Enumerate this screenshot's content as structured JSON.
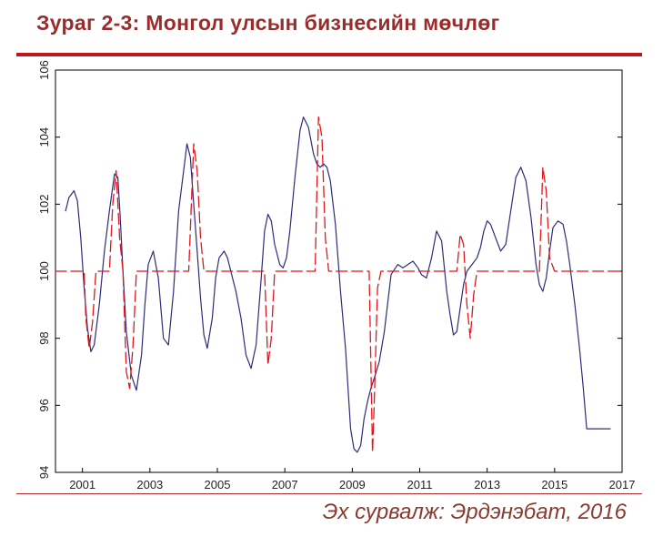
{
  "header": {
    "title": "Зураг 2-3:  Монгол улсын бизнесийн мөчлөг"
  },
  "footer": {
    "source": "Эх сурвалж: Эрдэнэбат, 2016"
  },
  "colors": {
    "title": "#9b2c2c",
    "rule": "#c0171c",
    "series_main": "#2b2d7c",
    "series_dashed": "#e0161b"
  },
  "chart_data": {
    "type": "line",
    "title": "",
    "xlabel": "",
    "ylabel": "",
    "xlim": [
      2000.2,
      2017
    ],
    "ylim": [
      94,
      106
    ],
    "x_ticks": [
      2001,
      2003,
      2005,
      2007,
      2009,
      2011,
      2013,
      2015,
      2017
    ],
    "y_ticks": [
      94,
      96,
      98,
      100,
      102,
      104,
      106
    ],
    "grid": false,
    "series": [
      {
        "style": "solid",
        "color": "#2b2d7c",
        "x": [
          2000.5,
          2000.6,
          2000.75,
          2000.85,
          2000.95,
          2001.05,
          2001.15,
          2001.25,
          2001.35,
          2001.5,
          2001.65,
          2001.8,
          2001.95,
          2002.05,
          2002.12,
          2002.2,
          2002.3,
          2002.45,
          2002.6,
          2002.75,
          2002.85,
          2002.95,
          2003.1,
          2003.25,
          2003.4,
          2003.55,
          2003.7,
          2003.85,
          2003.95,
          2004.1,
          2004.2,
          2004.3,
          2004.4,
          2004.5,
          2004.6,
          2004.7,
          2004.85,
          2004.95,
          2005.05,
          2005.2,
          2005.3,
          2005.4,
          2005.55,
          2005.7,
          2005.85,
          2006.0,
          2006.15,
          2006.3,
          2006.4,
          2006.5,
          2006.6,
          2006.7,
          2006.85,
          2006.95,
          2007.05,
          2007.15,
          2007.3,
          2007.45,
          2007.55,
          2007.7,
          2007.85,
          2007.95,
          2008.05,
          2008.15,
          2008.25,
          2008.35,
          2008.5,
          2008.65,
          2008.8,
          2008.95,
          2009.05,
          2009.15,
          2009.25,
          2009.35,
          2009.45,
          2009.55,
          2009.65,
          2009.8,
          2009.95,
          2010.15,
          2010.35,
          2010.5,
          2010.65,
          2010.8,
          2010.95,
          2011.05,
          2011.2,
          2011.35,
          2011.5,
          2011.65,
          2011.8,
          2011.9,
          2012.0,
          2012.1,
          2012.2,
          2012.3,
          2012.4,
          2012.55,
          2012.7,
          2012.8,
          2012.9,
          2013.0,
          2013.1,
          2013.25,
          2013.4,
          2013.55,
          2013.7,
          2013.85,
          2014.0,
          2014.15,
          2014.3,
          2014.45,
          2014.55,
          2014.65,
          2014.75,
          2014.85,
          2014.95,
          2015.1,
          2015.25,
          2015.35,
          2015.45,
          2015.6,
          2015.75,
          2015.85,
          2015.95,
          2016.1,
          2016.25,
          2016.4,
          2016.55,
          2016.65
        ],
        "y": [
          101.8,
          102.2,
          102.4,
          102.1,
          101.0,
          99.5,
          98.3,
          97.6,
          97.8,
          99.0,
          100.6,
          101.8,
          102.9,
          102.8,
          101.6,
          100.0,
          98.2,
          96.9,
          96.45,
          97.5,
          99.0,
          100.2,
          100.6,
          99.8,
          98.0,
          97.8,
          99.4,
          101.8,
          102.6,
          103.8,
          103.4,
          102.0,
          100.6,
          99.2,
          98.1,
          97.7,
          98.6,
          99.8,
          100.4,
          100.6,
          100.4,
          100.0,
          99.4,
          98.6,
          97.5,
          97.1,
          97.8,
          99.8,
          101.2,
          101.7,
          101.5,
          100.8,
          100.2,
          100.1,
          100.4,
          101.2,
          102.8,
          104.2,
          104.6,
          104.3,
          103.5,
          103.2,
          103.1,
          103.2,
          103.1,
          102.7,
          101.4,
          99.4,
          97.7,
          95.3,
          94.7,
          94.6,
          94.8,
          95.6,
          96.1,
          96.5,
          96.8,
          97.3,
          98.2,
          99.9,
          100.2,
          100.1,
          100.2,
          100.3,
          100.1,
          99.9,
          99.8,
          100.4,
          101.2,
          100.9,
          99.4,
          98.7,
          98.1,
          98.2,
          98.9,
          99.6,
          100.0,
          100.2,
          100.4,
          100.7,
          101.2,
          101.5,
          101.4,
          101.0,
          100.6,
          100.8,
          101.8,
          102.8,
          103.1,
          102.7,
          101.6,
          100.2,
          99.6,
          99.4,
          99.8,
          100.6,
          101.3,
          101.5,
          101.4,
          100.9,
          100.2,
          99.0,
          97.6,
          96.5,
          95.3,
          95.3,
          95.3,
          95.3,
          95.3,
          95.3
        ],
        "y_fix_note": ""
      },
      {
        "style": "dashed",
        "color": "#e0161b",
        "x": [
          2000.2,
          2001.05,
          2001.1,
          2001.2,
          2001.3,
          2001.4,
          2001.5,
          2001.8,
          2001.9,
          2002.0,
          2002.1,
          2002.2,
          2002.3,
          2002.4,
          2002.5,
          2002.6,
          2002.7,
          2002.8,
          2002.9,
          2004.15,
          2004.3,
          2004.4,
          2004.5,
          2004.6,
          2006.4,
          2006.5,
          2006.6,
          2006.7,
          2006.8,
          2007.9,
          2008.0,
          2008.1,
          2008.2,
          2008.3,
          2009.5,
          2009.6,
          2009.65,
          2009.75,
          2009.85,
          2012.1,
          2012.2,
          2012.3,
          2012.4,
          2012.5,
          2012.6,
          2012.7,
          2012.8,
          2014.55,
          2014.65,
          2014.75,
          2014.85,
          2015.0,
          2017
        ],
        "y": [
          100,
          100,
          98.6,
          97.7,
          98.5,
          100,
          100,
          100,
          102.0,
          103.0,
          101.0,
          100.0,
          97.0,
          96.5,
          97.8,
          100,
          100,
          100,
          100,
          100,
          103.8,
          103.0,
          101.0,
          100,
          100,
          97.2,
          98.0,
          100,
          100,
          100,
          104.6,
          104.0,
          101.0,
          100,
          100,
          94.6,
          96.0,
          99.5,
          100,
          100,
          101.1,
          100.8,
          99.0,
          98.0,
          99.3,
          100,
          100,
          100,
          103.1,
          102.4,
          100.4,
          100,
          100
        ]
      }
    ]
  }
}
